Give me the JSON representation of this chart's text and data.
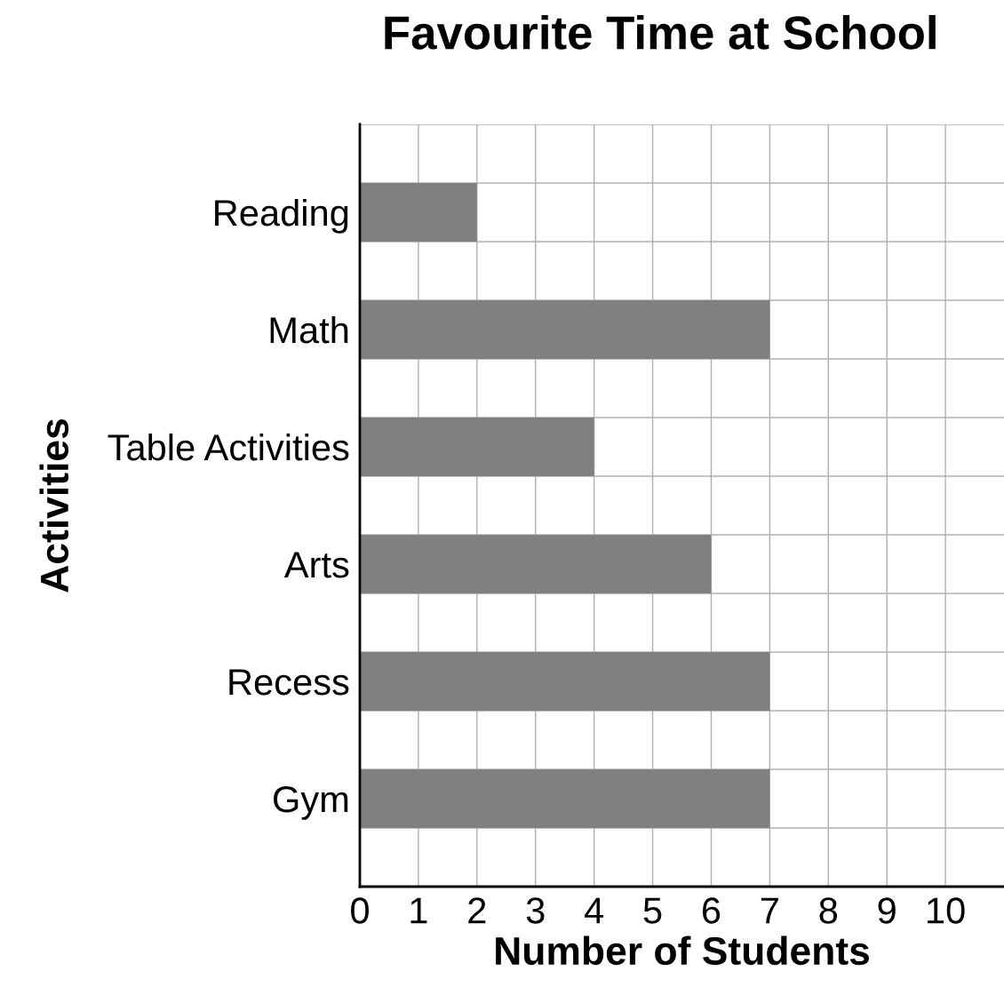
{
  "chart_data": {
    "type": "bar",
    "orientation": "horizontal",
    "title": "Favourite Time at School",
    "xlabel": "Number of Students",
    "ylabel": "Activities",
    "categories": [
      "Reading",
      "Math",
      "Table Activities",
      "Arts",
      "Recess",
      "Gym"
    ],
    "values": [
      2,
      7,
      4,
      6,
      7,
      7
    ],
    "color": "#808080",
    "xlim": [
      0,
      11
    ],
    "xticks": [
      0,
      1,
      2,
      3,
      4,
      5,
      6,
      7,
      8,
      9,
      10
    ],
    "grid": true
  }
}
